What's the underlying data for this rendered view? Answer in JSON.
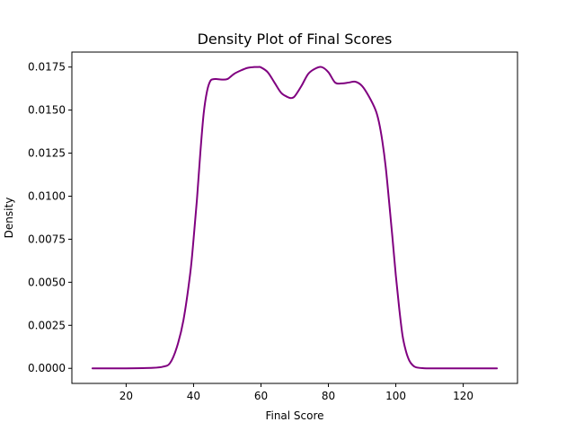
{
  "chart_data": {
    "type": "line",
    "title": "Density Plot of Final Scores",
    "xlabel": "Final Score",
    "ylabel": "Density",
    "xlim": [
      3.9,
      136.1
    ],
    "ylim": [
      -0.000875,
      0.01837
    ],
    "xticks": [
      20,
      40,
      60,
      80,
      100,
      120
    ],
    "yticks": [
      0.0,
      0.0025,
      0.005,
      0.0075,
      0.01,
      0.0125,
      0.015,
      0.0175
    ],
    "ytick_labels": [
      "0.0000",
      "0.0025",
      "0.0050",
      "0.0075",
      "0.0100",
      "0.0125",
      "0.0150",
      "0.0175"
    ],
    "grid": false,
    "legend": "none",
    "series": [
      {
        "color": "#800080",
        "x": [
          10,
          20,
          28,
          31,
          33,
          35,
          37,
          39,
          40,
          41,
          42,
          43,
          44,
          45,
          46,
          47,
          48,
          50,
          52,
          54,
          56,
          58,
          59,
          60,
          62,
          64,
          66,
          68,
          69,
          70,
          72,
          74,
          76,
          78,
          80,
          82,
          84,
          86,
          88,
          90,
          92,
          94,
          95,
          96,
          97,
          98,
          99,
          100,
          101,
          102,
          103,
          104,
          105,
          106,
          108,
          110,
          120,
          130
        ],
        "y": [
          0.0,
          0.0,
          3e-05,
          0.0001,
          0.0003,
          0.0012,
          0.0028,
          0.0055,
          0.0075,
          0.0098,
          0.0125,
          0.0148,
          0.0161,
          0.0167,
          0.0168,
          0.0168,
          0.01678,
          0.0168,
          0.0171,
          0.0173,
          0.01745,
          0.0175,
          0.0175,
          0.01748,
          0.0172,
          0.0166,
          0.016,
          0.01575,
          0.0157,
          0.0158,
          0.0164,
          0.0171,
          0.0174,
          0.0175,
          0.0172,
          0.0166,
          0.01655,
          0.0166,
          0.01665,
          0.0164,
          0.0158,
          0.015,
          0.0143,
          0.0132,
          0.0117,
          0.0097,
          0.0076,
          0.0054,
          0.0035,
          0.0019,
          0.001,
          0.00045,
          0.00018,
          6e-05,
          1e-05,
          0.0,
          0.0,
          0.0
        ]
      }
    ]
  }
}
